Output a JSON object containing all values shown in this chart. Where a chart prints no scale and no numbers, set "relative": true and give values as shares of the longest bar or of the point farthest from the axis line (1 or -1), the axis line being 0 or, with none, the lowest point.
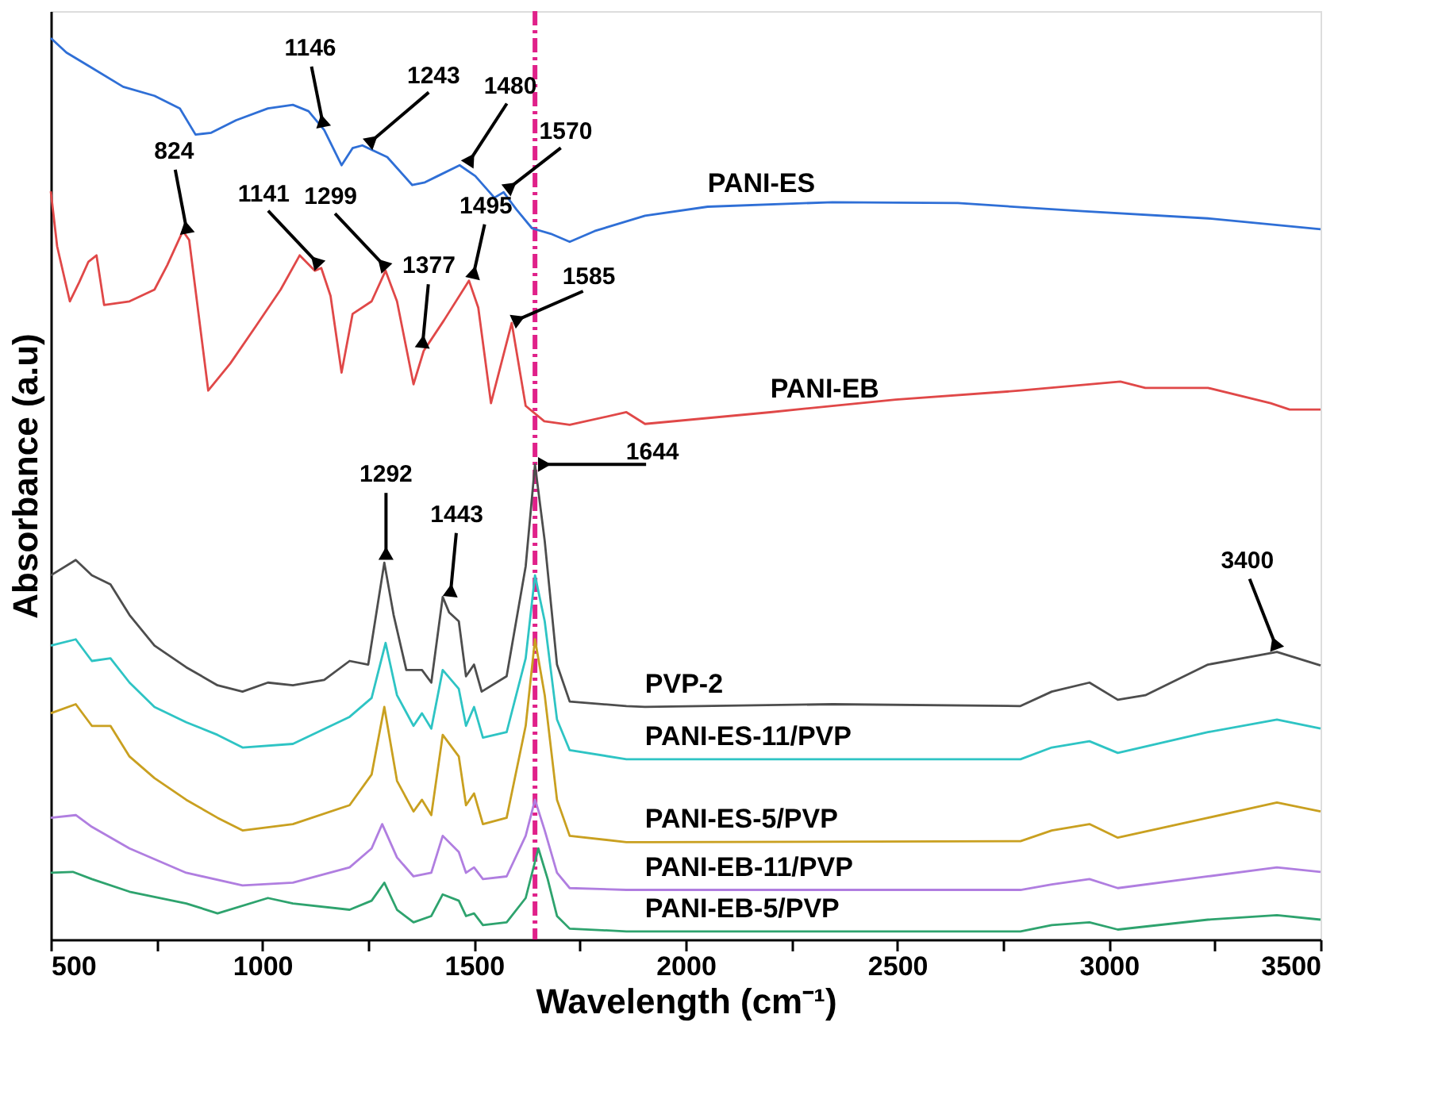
{
  "chart_data": {
    "type": "line",
    "relative": true,
    "xlabel": "Wavelength (cm⁻¹)",
    "ylabel": "Absorbance (a.u)",
    "xlim": [
      500,
      3500
    ],
    "xticks": [
      500,
      {
        "value": 750,
        "label": null
      },
      1000,
      {
        "value": 1250,
        "label": null
      },
      1500,
      {
        "value": 1750,
        "label": null
      },
      2000,
      {
        "value": 2250,
        "label": null
      },
      2500,
      {
        "value": 2750,
        "label": null
      },
      3000,
      {
        "value": 3250,
        "label": null
      },
      3500
    ],
    "grid": false,
    "legend": false,
    "marker": "none",
    "line_style": "solid",
    "series": [
      {
        "name": "PANI-ES",
        "color": "#2f6fd6",
        "x": [
          500,
          537,
          597,
          671,
          745,
          805,
          842,
          879,
          938,
          1013,
          1072,
          1109,
          1146,
          1187,
          1213,
          1236,
          1295,
          1354,
          1384,
          1414,
          1466,
          1503,
          1548,
          1570,
          1600,
          1637,
          1681,
          1726,
          1785,
          1904,
          2052,
          2347,
          2643,
          2938,
          3234,
          3500
        ],
        "values": [
          1.0,
          0.984,
          0.967,
          0.946,
          0.936,
          0.922,
          0.893,
          0.895,
          0.909,
          0.922,
          0.926,
          0.919,
          0.898,
          0.859,
          0.878,
          0.881,
          0.868,
          0.837,
          0.84,
          0.847,
          0.859,
          0.847,
          0.823,
          0.829,
          0.81,
          0.789,
          0.783,
          0.774,
          0.786,
          0.803,
          0.813,
          0.818,
          0.817,
          0.808,
          0.8,
          0.788
        ]
      },
      {
        "name": "PANI-EB",
        "color": "#e04848",
        "x": [
          500,
          515,
          545,
          567,
          589,
          608,
          626,
          686,
          745,
          775,
          812,
          827,
          872,
          924,
          984,
          1043,
          1088,
          1124,
          1139,
          1161,
          1187,
          1213,
          1258,
          1291,
          1318,
          1357,
          1381,
          1429,
          1488,
          1510,
          1540,
          1589,
          1622,
          1666,
          1726,
          1860,
          1904,
          2200,
          2496,
          2791,
          3027,
          3086,
          3234,
          3382,
          3427,
          3500
        ],
        "values": [
          0.83,
          0.769,
          0.708,
          0.729,
          0.752,
          0.759,
          0.704,
          0.708,
          0.721,
          0.748,
          0.786,
          0.776,
          0.609,
          0.639,
          0.68,
          0.721,
          0.759,
          0.742,
          0.745,
          0.714,
          0.629,
          0.694,
          0.708,
          0.742,
          0.708,
          0.616,
          0.653,
          0.687,
          0.731,
          0.701,
          0.595,
          0.684,
          0.592,
          0.575,
          0.571,
          0.585,
          0.572,
          0.585,
          0.599,
          0.609,
          0.619,
          0.612,
          0.612,
          0.595,
          0.588,
          0.588
        ]
      },
      {
        "name": "PVP-2",
        "color": "#4d4d4d",
        "x": [
          500,
          559,
          597,
          641,
          686,
          745,
          820,
          894,
          953,
          1013,
          1072,
          1146,
          1206,
          1250,
          1288,
          1310,
          1340,
          1377,
          1399,
          1426,
          1441,
          1464,
          1481,
          1500,
          1518,
          1577,
          1622,
          1644,
          1667,
          1696,
          1726,
          1860,
          1904,
          2347,
          2791,
          2865,
          2954,
          3021,
          3086,
          3234,
          3397,
          3500
        ],
        "values": [
          0.404,
          0.421,
          0.404,
          0.394,
          0.36,
          0.326,
          0.302,
          0.282,
          0.275,
          0.285,
          0.282,
          0.288,
          0.309,
          0.305,
          0.418,
          0.36,
          0.299,
          0.299,
          0.285,
          0.38,
          0.363,
          0.353,
          0.292,
          0.305,
          0.275,
          0.292,
          0.414,
          0.527,
          0.442,
          0.305,
          0.264,
          0.259,
          0.258,
          0.261,
          0.259,
          0.275,
          0.285,
          0.266,
          0.271,
          0.305,
          0.319,
          0.304
        ]
      },
      {
        "name": "PANI-ES-11/PVP",
        "color": "#2ec4c4",
        "x": [
          500,
          559,
          597,
          641,
          686,
          745,
          820,
          894,
          953,
          1072,
          1206,
          1258,
          1291,
          1318,
          1357,
          1377,
          1399,
          1426,
          1464,
          1481,
          1500,
          1521,
          1577,
          1622,
          1644,
          1667,
          1696,
          1726,
          1860,
          1904,
          2791,
          2865,
          2954,
          3021,
          3234,
          3397,
          3500
        ],
        "values": [
          0.326,
          0.333,
          0.309,
          0.312,
          0.285,
          0.258,
          0.241,
          0.227,
          0.213,
          0.217,
          0.247,
          0.268,
          0.329,
          0.271,
          0.237,
          0.251,
          0.234,
          0.299,
          0.278,
          0.237,
          0.258,
          0.224,
          0.23,
          0.312,
          0.404,
          0.353,
          0.244,
          0.21,
          0.2,
          0.2,
          0.2,
          0.213,
          0.22,
          0.207,
          0.23,
          0.244,
          0.234
        ]
      },
      {
        "name": "PANI-ES-5/PVP",
        "color": "#c9a020",
        "x": [
          500,
          559,
          597,
          641,
          686,
          745,
          820,
          894,
          953,
          1072,
          1206,
          1258,
          1288,
          1318,
          1357,
          1377,
          1399,
          1426,
          1464,
          1481,
          1500,
          1521,
          1577,
          1622,
          1644,
          1667,
          1696,
          1726,
          1860,
          1904,
          2791,
          2865,
          2954,
          3021,
          3234,
          3397,
          3500
        ],
        "values": [
          0.251,
          0.261,
          0.237,
          0.237,
          0.203,
          0.179,
          0.155,
          0.135,
          0.121,
          0.128,
          0.149,
          0.183,
          0.258,
          0.176,
          0.142,
          0.155,
          0.138,
          0.227,
          0.203,
          0.149,
          0.162,
          0.128,
          0.135,
          0.237,
          0.333,
          0.271,
          0.155,
          0.115,
          0.108,
          0.108,
          0.109,
          0.121,
          0.128,
          0.113,
          0.135,
          0.152,
          0.142
        ]
      },
      {
        "name": "PANI-EB-11/PVP",
        "color": "#b07ee0",
        "x": [
          500,
          559,
          597,
          686,
          820,
          953,
          1072,
          1206,
          1258,
          1283,
          1318,
          1357,
          1399,
          1426,
          1464,
          1481,
          1500,
          1521,
          1577,
          1622,
          1644,
          1667,
          1696,
          1726,
          1860,
          1904,
          2791,
          2865,
          2954,
          3021,
          3234,
          3397,
          3500
        ],
        "values": [
          0.135,
          0.138,
          0.125,
          0.101,
          0.074,
          0.06,
          0.063,
          0.08,
          0.101,
          0.128,
          0.091,
          0.07,
          0.074,
          0.115,
          0.097,
          0.074,
          0.08,
          0.067,
          0.07,
          0.115,
          0.155,
          0.121,
          0.074,
          0.057,
          0.055,
          0.055,
          0.055,
          0.061,
          0.067,
          0.057,
          0.07,
          0.08,
          0.075
        ]
      },
      {
        "name": "PANI-EB-5/PVP",
        "color": "#2ea36e",
        "x": [
          500,
          552,
          597,
          686,
          820,
          894,
          1013,
          1072,
          1206,
          1258,
          1288,
          1318,
          1357,
          1399,
          1426,
          1464,
          1481,
          1500,
          1521,
          1577,
          1622,
          1652,
          1674,
          1696,
          1726,
          1860,
          1904,
          2791,
          2865,
          2954,
          3021,
          3234,
          3397,
          3500
        ],
        "values": [
          0.074,
          0.075,
          0.067,
          0.053,
          0.04,
          0.029,
          0.046,
          0.04,
          0.033,
          0.043,
          0.063,
          0.033,
          0.019,
          0.026,
          0.05,
          0.043,
          0.026,
          0.029,
          0.016,
          0.019,
          0.046,
          0.101,
          0.067,
          0.026,
          0.012,
          0.009,
          0.009,
          0.009,
          0.016,
          0.019,
          0.011,
          0.022,
          0.027,
          0.022
        ]
      }
    ],
    "ref_lines": [
      {
        "axis": "x",
        "value": 1644,
        "label": null,
        "color": "#e0218a",
        "line_style": "dashed"
      }
    ],
    "annotations": [
      {
        "text": "1146",
        "x": 1146,
        "y": 0.898
      },
      {
        "text": "1243",
        "x": 1243,
        "y": 0.88
      },
      {
        "text": "1480",
        "x": 1480,
        "y": 0.857
      },
      {
        "text": "1570",
        "x": 1570,
        "y": 0.829
      },
      {
        "text": "824",
        "x": 824,
        "y": 0.78
      },
      {
        "text": "1141",
        "x": 1141,
        "y": 0.745
      },
      {
        "text": "1299",
        "x": 1299,
        "y": 0.742
      },
      {
        "text": "1377",
        "x": 1377,
        "y": 0.653
      },
      {
        "text": "1495",
        "x": 1495,
        "y": 0.73
      },
      {
        "text": "1585",
        "x": 1585,
        "y": 0.684
      },
      {
        "text": "1644",
        "x": 1644,
        "y": 0.527
      },
      {
        "text": "1292",
        "x": 1292,
        "y": 0.418
      },
      {
        "text": "1443",
        "x": 1443,
        "y": 0.377
      },
      {
        "text": "3400",
        "x": 3400,
        "y": 0.319
      }
    ]
  }
}
